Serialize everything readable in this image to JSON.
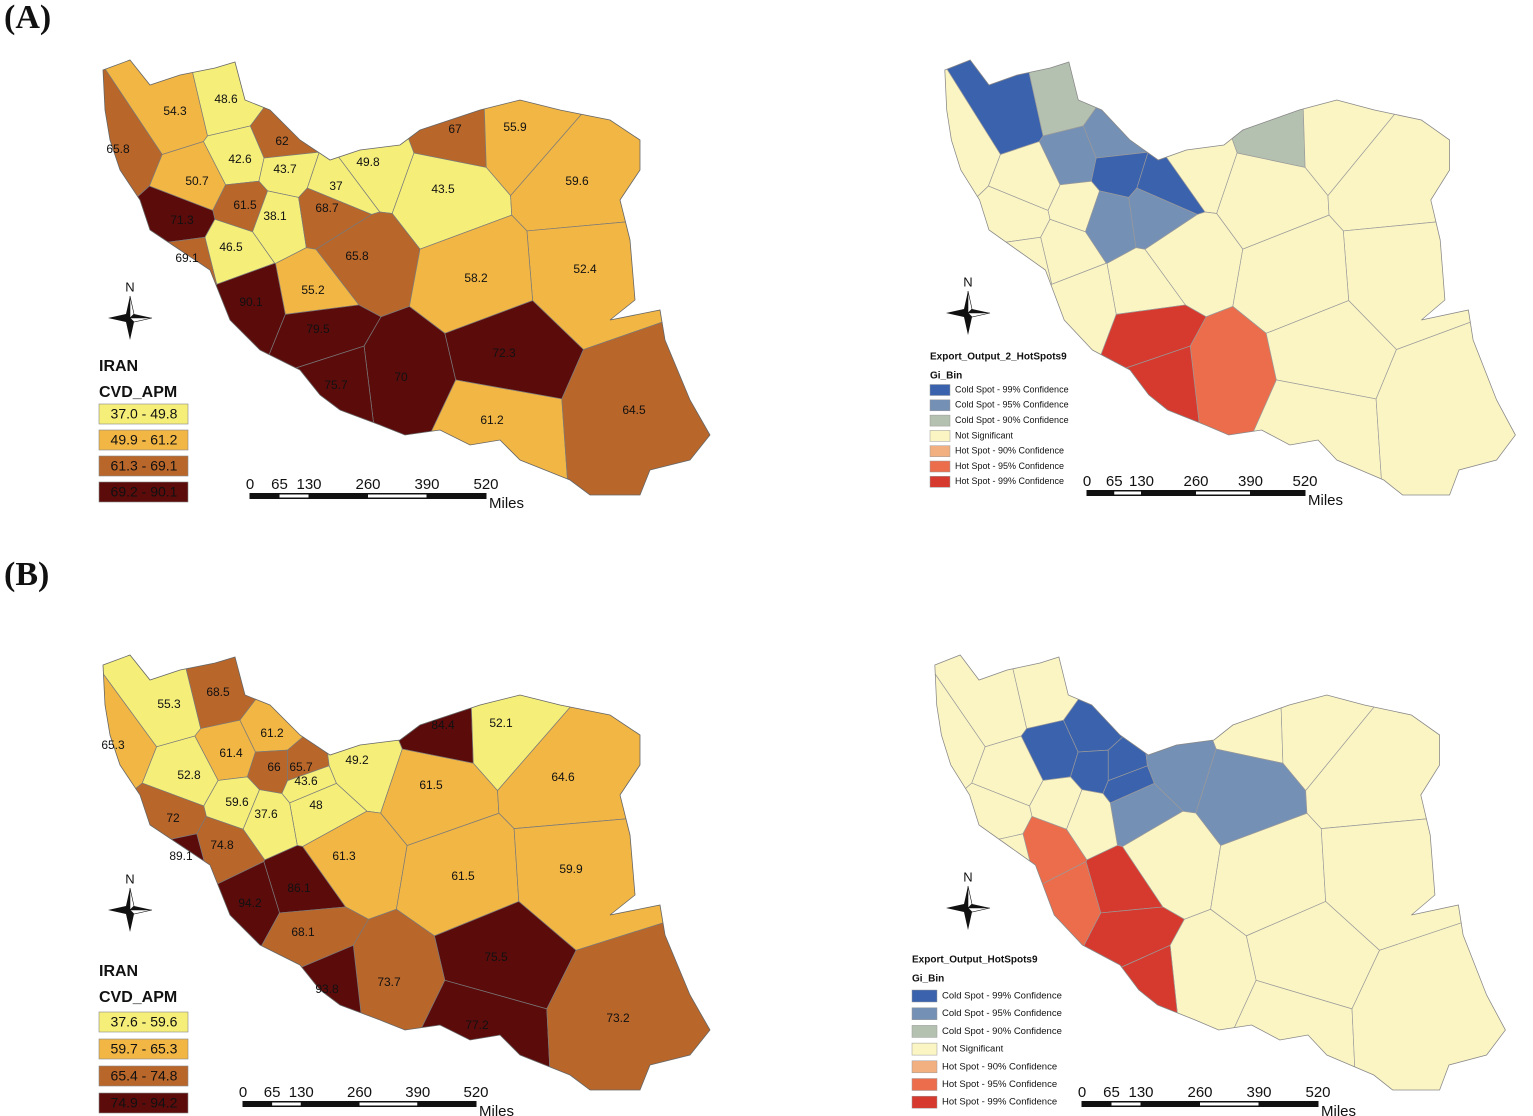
{
  "panels": [
    {
      "label": "(A)",
      "choropleth": {
        "country": "IRAN",
        "variable": "CVD_APM",
        "north": "N",
        "provinces": [
          {
            "value": 54.3,
            "color": "#f2b644"
          },
          {
            "value": 48.6,
            "color": "#f5ef7a"
          },
          {
            "value": 62,
            "color": "#b9662a"
          },
          {
            "value": 67,
            "color": "#b9662a"
          },
          {
            "value": 55.9,
            "color": "#f2b644"
          },
          {
            "value": 65.8,
            "color": "#b9662a"
          },
          {
            "value": 42.6,
            "color": "#f5ef7a"
          },
          {
            "value": 43.7,
            "color": "#f5ef7a"
          },
          {
            "value": 49.8,
            "color": "#f5ef7a"
          },
          {
            "value": 37,
            "color": "#f5ef7a"
          },
          {
            "value": 43.5,
            "color": "#f5ef7a"
          },
          {
            "value": 59.6,
            "color": "#f2b644"
          },
          {
            "value": 50.7,
            "color": "#f2b644"
          },
          {
            "value": 61.5,
            "color": "#b9662a"
          },
          {
            "value": 38.1,
            "color": "#f5ef7a"
          },
          {
            "value": 68.7,
            "color": "#b9662a"
          },
          {
            "value": 71.3,
            "color": "#5c0b0b"
          },
          {
            "value": 46.5,
            "color": "#f5ef7a"
          },
          {
            "value": 69.1,
            "color": "#b9662a"
          },
          {
            "value": 65.8,
            "color": "#b9662a"
          },
          {
            "value": 52.4,
            "color": "#f2b644"
          },
          {
            "value": 58.2,
            "color": "#f2b644"
          },
          {
            "value": 55.2,
            "color": "#f2b644"
          },
          {
            "value": 90.1,
            "color": "#5c0b0b"
          },
          {
            "value": 79.5,
            "color": "#5c0b0b"
          },
          {
            "value": 70,
            "color": "#5c0b0b"
          },
          {
            "value": 72.3,
            "color": "#5c0b0b"
          },
          {
            "value": 75.7,
            "color": "#5c0b0b"
          },
          {
            "value": 61.2,
            "color": "#f2b644"
          },
          {
            "value": 64.5,
            "color": "#b9662a"
          }
        ],
        "legend": [
          {
            "label": "37.0 - 49.8",
            "color": "#f5ef7a"
          },
          {
            "label": "49.9 - 61.2",
            "color": "#f2b644"
          },
          {
            "label": "61.3 - 69.1",
            "color": "#b9662a"
          },
          {
            "label": "69.2 - 90.1",
            "color": "#5c0b0b"
          }
        ],
        "scale": {
          "ticks": [
            0,
            65,
            130,
            260,
            390,
            520
          ],
          "unit": "Miles"
        }
      },
      "hotspots": {
        "title": "Export_Output_2_HotSpots9",
        "field": "Gi_Bin",
        "north": "N",
        "legend": [
          {
            "label": "Cold Spot - 99% Confidence",
            "color": "#3b62ad"
          },
          {
            "label": "Cold Spot - 95% Confidence",
            "color": "#7590b5"
          },
          {
            "label": "Cold Spot - 90% Confidence",
            "color": "#b4c1b0"
          },
          {
            "label": "Not Significant",
            "color": "#fbf5c4"
          },
          {
            "label": "Hot Spot - 90% Confidence",
            "color": "#f2b080"
          },
          {
            "label": "Hot Spot - 95% Confidence",
            "color": "#ec6d4c"
          },
          {
            "label": "Hot Spot - 99% Confidence",
            "color": "#d63a2e"
          }
        ],
        "scale": {
          "ticks": [
            0,
            65,
            130,
            260,
            390,
            520
          ],
          "unit": "Miles"
        }
      }
    },
    {
      "label": "(B)",
      "choropleth": {
        "country": "IRAN",
        "variable": "CVD_APM",
        "north": "N",
        "provinces": [
          {
            "value": 55.3,
            "color": "#f5ef7a"
          },
          {
            "value": 68.5,
            "color": "#b9662a"
          },
          {
            "value": 65.3,
            "color": "#f2b644"
          },
          {
            "value": 61.2,
            "color": "#f2b644"
          },
          {
            "value": 84.4,
            "color": "#5c0b0b"
          },
          {
            "value": 52.1,
            "color": "#f5ef7a"
          },
          {
            "value": 61.4,
            "color": "#f2b644"
          },
          {
            "value": 66,
            "color": "#b9662a"
          },
          {
            "value": 65.7,
            "color": "#b9662a"
          },
          {
            "value": 49.2,
            "color": "#f5ef7a"
          },
          {
            "value": 43.6,
            "color": "#f5ef7a"
          },
          {
            "value": 61.5,
            "color": "#f2b644"
          },
          {
            "value": 64.6,
            "color": "#f2b644"
          },
          {
            "value": 52.8,
            "color": "#f5ef7a"
          },
          {
            "value": 59.6,
            "color": "#f5ef7a"
          },
          {
            "value": 48,
            "color": "#f5ef7a"
          },
          {
            "value": 37.6,
            "color": "#f5ef7a"
          },
          {
            "value": 72,
            "color": "#b9662a"
          },
          {
            "value": 74.8,
            "color": "#b9662a"
          },
          {
            "value": 89.1,
            "color": "#5c0b0b"
          },
          {
            "value": 86.1,
            "color": "#5c0b0b"
          },
          {
            "value": 61.3,
            "color": "#f2b644"
          },
          {
            "value": 61.5,
            "color": "#f2b644"
          },
          {
            "value": 59.9,
            "color": "#f2b644"
          },
          {
            "value": 94.2,
            "color": "#5c0b0b"
          },
          {
            "value": 68.1,
            "color": "#b9662a"
          },
          {
            "value": 75.5,
            "color": "#5c0b0b"
          },
          {
            "value": 73.7,
            "color": "#b9662a"
          },
          {
            "value": 93.8,
            "color": "#5c0b0b"
          },
          {
            "value": 77.2,
            "color": "#5c0b0b"
          },
          {
            "value": 73.2,
            "color": "#b9662a"
          }
        ],
        "legend": [
          {
            "label": "37.6 - 59.6",
            "color": "#f5ef7a"
          },
          {
            "label": "59.7 - 65.3",
            "color": "#f2b644"
          },
          {
            "label": "65.4 - 74.8",
            "color": "#b9662a"
          },
          {
            "label": "74.9 - 94.2",
            "color": "#5c0b0b"
          }
        ],
        "scale": {
          "ticks": [
            0,
            65,
            130,
            260,
            390,
            520
          ],
          "unit": "Miles"
        }
      },
      "hotspots": {
        "title": "Export_Output_HotSpots9",
        "field": "Gi_Bin",
        "north": "N",
        "legend": [
          {
            "label": "Cold Spot - 99% Confidence",
            "color": "#3b62ad"
          },
          {
            "label": "Cold Spot - 95% Confidence",
            "color": "#7590b5"
          },
          {
            "label": "Cold Spot - 90% Confidence",
            "color": "#b4c1b0"
          },
          {
            "label": "Not Significant",
            "color": "#fbf5c4"
          },
          {
            "label": "Hot Spot - 90% Confidence",
            "color": "#f2b080"
          },
          {
            "label": "Hot Spot - 95% Confidence",
            "color": "#ec6d4c"
          },
          {
            "label": "Hot Spot - 99% Confidence",
            "color": "#d63a2e"
          }
        ],
        "scale": {
          "ticks": [
            0,
            65,
            130,
            260,
            390,
            520
          ],
          "unit": "Miles"
        }
      }
    }
  ]
}
